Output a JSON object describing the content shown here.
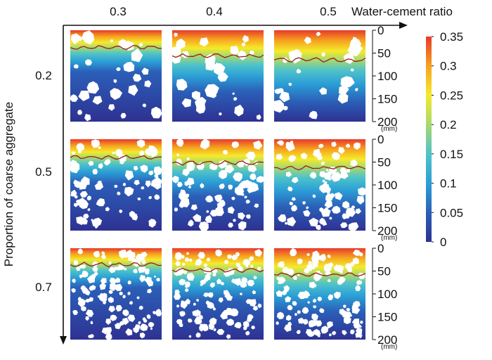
{
  "columns": {
    "title": "Water-cement ratio",
    "labels": [
      "0.3",
      "0.4",
      "0.5"
    ]
  },
  "rows": {
    "title": "Proportion of coarse aggregate",
    "labels": [
      "0.2",
      "0.5",
      "0.7"
    ]
  },
  "depth_axis": {
    "ticks": [
      "0",
      "50",
      "100",
      "150",
      "200"
    ],
    "unit": "(mm)",
    "range": [
      0,
      200
    ]
  },
  "colorbar": {
    "ticks": [
      "0.35",
      "0.3",
      "0.25",
      "0.2",
      "0.15",
      "0.1",
      "0.05",
      "0"
    ],
    "range": [
      0,
      0.35
    ],
    "colors": [
      "#2e3192",
      "#2b5fb8",
      "#2b9fd6",
      "#4fc3c8",
      "#a8d86e",
      "#f5ea2a",
      "#f6a21e",
      "#e8392d"
    ]
  },
  "panels": [
    {
      "row": 0,
      "col": 0,
      "front_depth_mm": 38,
      "aggregate_count": 28
    },
    {
      "row": 0,
      "col": 1,
      "front_depth_mm": 56,
      "aggregate_count": 30
    },
    {
      "row": 0,
      "col": 2,
      "front_depth_mm": 65,
      "aggregate_count": 26
    },
    {
      "row": 1,
      "col": 0,
      "front_depth_mm": 40,
      "aggregate_count": 75
    },
    {
      "row": 1,
      "col": 1,
      "front_depth_mm": 52,
      "aggregate_count": 75
    },
    {
      "row": 1,
      "col": 2,
      "front_depth_mm": 62,
      "aggregate_count": 75
    },
    {
      "row": 2,
      "col": 0,
      "front_depth_mm": 36,
      "aggregate_count": 115
    },
    {
      "row": 2,
      "col": 1,
      "front_depth_mm": 48,
      "aggregate_count": 115
    },
    {
      "row": 2,
      "col": 2,
      "front_depth_mm": 58,
      "aggregate_count": 115
    }
  ]
}
